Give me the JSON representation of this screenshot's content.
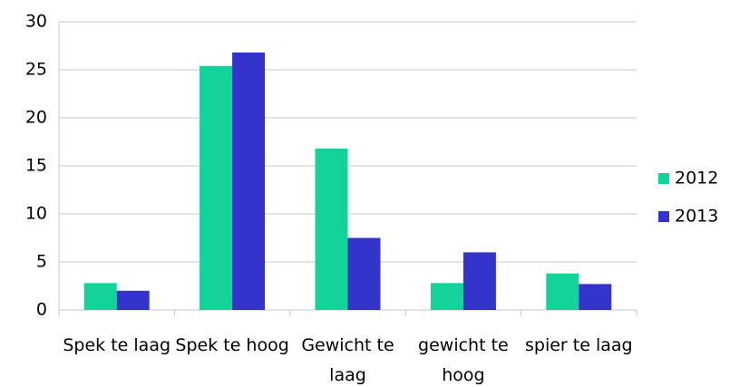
{
  "chart_data": {
    "type": "bar",
    "categories": [
      "Spek te laag",
      "Spek te hoog",
      "Gewicht te laag",
      "gewicht te hoog",
      "spier te laag"
    ],
    "series": [
      {
        "name": "2012",
        "color": "#13d39b",
        "values": [
          2.8,
          25.4,
          16.8,
          2.8,
          3.8
        ]
      },
      {
        "name": "2013",
        "color": "#3434cc",
        "values": [
          2.0,
          26.8,
          7.5,
          6.0,
          2.7
        ]
      }
    ],
    "ylim": [
      0,
      30
    ],
    "yticks": [
      0,
      5,
      10,
      15,
      20,
      25,
      30
    ],
    "grid": true,
    "legend": "right"
  }
}
